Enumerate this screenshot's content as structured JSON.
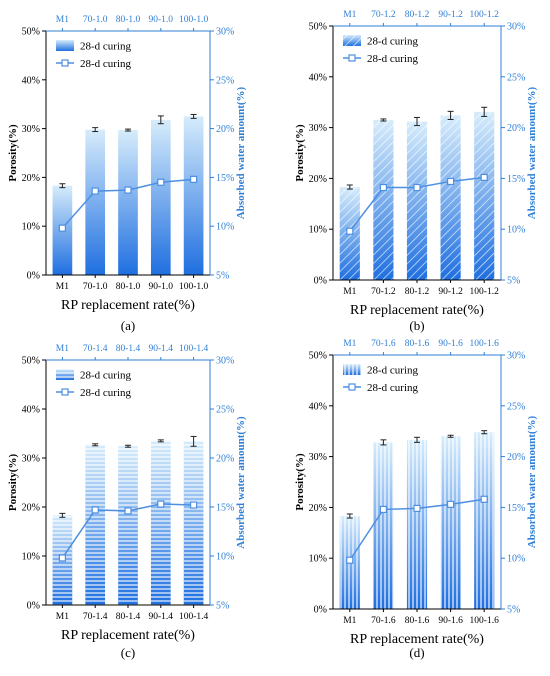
{
  "chart_data": [
    {
      "type": "bar",
      "panel_label": "(a)",
      "pattern": "none",
      "categories": [
        "M1",
        "70-1.0",
        "80-1.0",
        "90-1.0",
        "100-1.0"
      ],
      "top_categories": [
        "M1",
        "70-1.0",
        "80-1.0",
        "90-1.0",
        "100-1.0"
      ],
      "series": [
        {
          "name": "28-d curing",
          "type": "bar",
          "axis": "left",
          "values": [
            18.3,
            29.8,
            29.7,
            31.8,
            32.5
          ],
          "errors": [
            0.4,
            0.4,
            0.2,
            0.8,
            0.4
          ]
        },
        {
          "name": "28-d curing",
          "type": "line",
          "axis": "right",
          "values": [
            9.8,
            13.6,
            13.7,
            14.5,
            14.8
          ]
        }
      ],
      "ylabel": "Porosity(%)",
      "y2label": "Absorbed water amount(%)",
      "xlabel": "RP replacement rate(%)",
      "ylim": [
        0,
        50
      ],
      "y2lim": [
        5,
        30
      ],
      "yticks": [
        "0%",
        "10%",
        "20%",
        "30%",
        "40%",
        "50%"
      ],
      "y2ticks": [
        "5%",
        "10%",
        "15%",
        "20%",
        "25%",
        "30%"
      ]
    },
    {
      "type": "bar",
      "panel_label": "(b)",
      "pattern": "diagonal",
      "categories": [
        "M1",
        "70-1.2",
        "80-1.2",
        "90-1.2",
        "100-1.2"
      ],
      "top_categories": [
        "M1",
        "70-1.2",
        "80-1.2",
        "90-1.2",
        "100-1.2"
      ],
      "series": [
        {
          "name": "28-d curing",
          "type": "bar",
          "axis": "left",
          "values": [
            18.3,
            31.5,
            31.2,
            32.4,
            33.1
          ],
          "errors": [
            0.4,
            0.2,
            0.8,
            0.8,
            0.9
          ]
        },
        {
          "name": "28-d curing",
          "type": "line",
          "axis": "right",
          "values": [
            9.8,
            14.1,
            14.1,
            14.7,
            15.1
          ]
        }
      ],
      "ylabel": "Porosity(%)",
      "y2label": "Absorbed water amount(%)",
      "xlabel": "RP replacement rate(%)",
      "ylim": [
        0,
        50
      ],
      "y2lim": [
        5,
        30
      ],
      "yticks": [
        "0%",
        "10%",
        "20%",
        "30%",
        "40%",
        "50%"
      ],
      "y2ticks": [
        "5%",
        "10%",
        "15%",
        "20%",
        "25%",
        "30%"
      ]
    },
    {
      "type": "bar",
      "panel_label": "(c)",
      "pattern": "horizontal",
      "categories": [
        "M1",
        "70-1.4",
        "80-1.4",
        "90-1.4",
        "100-1.4"
      ],
      "top_categories": [
        "M1",
        "70-1.4",
        "80-1.4",
        "90-1.4",
        "100-1.4"
      ],
      "series": [
        {
          "name": "28-d curing",
          "type": "bar",
          "axis": "left",
          "values": [
            18.3,
            32.7,
            32.4,
            33.5,
            33.4
          ],
          "errors": [
            0.4,
            0.2,
            0.2,
            0.2,
            1.0
          ]
        },
        {
          "name": "28-d curing",
          "type": "line",
          "axis": "right",
          "values": [
            9.8,
            14.7,
            14.6,
            15.3,
            15.2
          ]
        }
      ],
      "ylabel": "Porosity(%)",
      "y2label": "Absorbed water amount(%)",
      "xlabel": "RP replacement rate(%)",
      "ylim": [
        0,
        50
      ],
      "y2lim": [
        5,
        30
      ],
      "yticks": [
        "0%",
        "10%",
        "20%",
        "30%",
        "40%",
        "50%"
      ],
      "y2ticks": [
        "5%",
        "10%",
        "15%",
        "20%",
        "25%",
        "30%"
      ]
    },
    {
      "type": "bar",
      "panel_label": "(d)",
      "pattern": "vertical",
      "categories": [
        "M1",
        "70-1.6",
        "80-1.6",
        "90-1.6",
        "100-1.6"
      ],
      "top_categories": [
        "M1",
        "70-1.6",
        "80-1.6",
        "90-1.6",
        "100-1.6"
      ],
      "series": [
        {
          "name": "28-d curing",
          "type": "bar",
          "axis": "left",
          "values": [
            18.3,
            32.8,
            33.3,
            34.0,
            34.8
          ],
          "errors": [
            0.4,
            0.5,
            0.5,
            0.2,
            0.3
          ]
        },
        {
          "name": "28-d curing",
          "type": "line",
          "axis": "right",
          "values": [
            9.8,
            14.8,
            14.9,
            15.3,
            15.8
          ]
        }
      ],
      "ylabel": "Porosity(%)",
      "y2label": "Absorbed water amount(%)",
      "xlabel": "RP replacement rate(%)",
      "ylim": [
        0,
        50
      ],
      "y2lim": [
        5,
        30
      ],
      "yticks": [
        "0%",
        "10%",
        "20%",
        "30%",
        "40%",
        "50%"
      ],
      "y2ticks": [
        "5%",
        "10%",
        "15%",
        "20%",
        "25%",
        "30%"
      ]
    }
  ],
  "colors": {
    "bar_top": "#d6ecfb",
    "bar_bottom": "#1f6fe0",
    "line": "#4d8fe0",
    "right_axis": "#2f7fd6"
  }
}
